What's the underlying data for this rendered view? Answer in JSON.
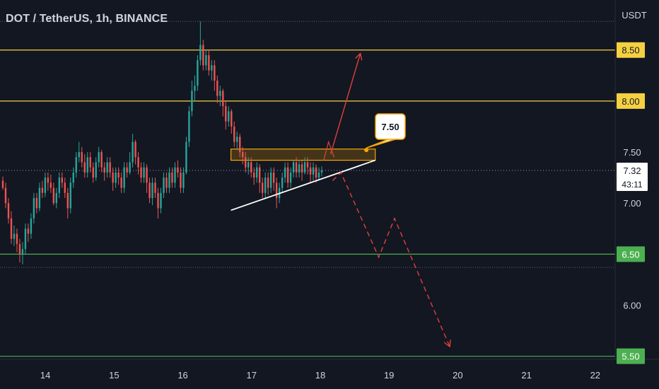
{
  "header": {
    "title": "DOT / TetherUS, 1h, BINANCE",
    "currency": "USDT"
  },
  "colors": {
    "background": "#131722",
    "bull": "#26a69a",
    "bear": "#ef5350",
    "resistance": "#f5d142",
    "support": "#4caf50",
    "zone": "#f7a600",
    "projection": "#e0403b",
    "text": "#d1d4dc"
  },
  "chart_data": {
    "type": "candlestick",
    "ylim": [
      5.47,
      8.99
    ],
    "y_ticks": [
      {
        "value": 8.0,
        "label": ""
      },
      {
        "value": 7.5,
        "label": "7.50"
      },
      {
        "value": 7.0,
        "label": "7.00"
      },
      {
        "value": 6.0,
        "label": "6.00"
      }
    ],
    "x_ticks": [
      {
        "value": 14,
        "label": "14"
      },
      {
        "value": 15,
        "label": "15"
      },
      {
        "value": 16,
        "label": "16"
      },
      {
        "value": 17,
        "label": "17"
      },
      {
        "value": 18,
        "label": "18"
      },
      {
        "value": 19,
        "label": "19"
      },
      {
        "value": 20,
        "label": "20"
      },
      {
        "value": 21,
        "label": "21"
      },
      {
        "value": 22,
        "label": "22"
      }
    ],
    "x_range": [
      13.34,
      22.29
    ],
    "levels": [
      {
        "name": "resistance-850",
        "value": 8.5,
        "label": "8.50",
        "kind": "resistance"
      },
      {
        "name": "resistance-800",
        "value": 8.0,
        "label": "8.00",
        "kind": "resistance"
      },
      {
        "name": "support-650",
        "value": 6.5,
        "label": "6.50",
        "kind": "support"
      },
      {
        "name": "support-550",
        "value": 5.5,
        "label": "5.50",
        "kind": "support"
      }
    ],
    "dotted_levels": [
      8.78,
      6.37
    ],
    "current_price": {
      "value": 7.32,
      "label": "7.32",
      "countdown": "43:11"
    },
    "zone": {
      "x_start": 16.7,
      "x_end": 18.8,
      "y_low": 7.42,
      "y_high": 7.53
    },
    "callout": {
      "label": "7.50",
      "x": 18.67,
      "y": 7.52
    },
    "trendline": {
      "points": [
        [
          16.7,
          6.93
        ],
        [
          18.8,
          7.42
        ]
      ]
    },
    "bullish_path": {
      "points": [
        [
          18.15,
          7.48
        ],
        [
          18.58,
          8.46
        ]
      ]
    },
    "bearish_path": {
      "points": [
        [
          18.18,
          7.22
        ],
        [
          18.3,
          7.3
        ],
        [
          18.85,
          6.47
        ],
        [
          19.08,
          6.85
        ],
        [
          19.88,
          5.6
        ]
      ]
    },
    "candles": [
      [
        7.22,
        7.15,
        7.26,
        7.13
      ],
      [
        7.15,
        7.0,
        7.2,
        6.95
      ],
      [
        7.0,
        6.85,
        7.05,
        6.8
      ],
      [
        6.85,
        6.65,
        6.92,
        6.6
      ],
      [
        6.65,
        6.7,
        6.78,
        6.58
      ],
      [
        6.7,
        6.6,
        6.75,
        6.52
      ],
      [
        6.6,
        6.5,
        6.65,
        6.42
      ],
      [
        6.5,
        6.55,
        6.62,
        6.4
      ],
      [
        6.55,
        6.75,
        6.8,
        6.5
      ],
      [
        6.75,
        6.7,
        6.8,
        6.62
      ],
      [
        6.7,
        6.85,
        6.9,
        6.65
      ],
      [
        6.85,
        7.05,
        7.1,
        6.8
      ],
      [
        7.05,
        6.95,
        7.1,
        6.9
      ],
      [
        6.95,
        7.15,
        7.2,
        6.92
      ],
      [
        7.15,
        7.1,
        7.22,
        7.05
      ],
      [
        7.1,
        7.25,
        7.3,
        7.06
      ],
      [
        7.25,
        7.2,
        7.3,
        7.12
      ],
      [
        7.2,
        7.15,
        7.28,
        7.1
      ],
      [
        7.15,
        7.0,
        7.2,
        6.98
      ],
      [
        7.0,
        7.1,
        7.15,
        6.95
      ],
      [
        7.1,
        7.25,
        7.3,
        7.05
      ],
      [
        7.25,
        7.2,
        7.3,
        7.15
      ],
      [
        7.2,
        7.1,
        7.25,
        7.05
      ],
      [
        7.1,
        6.95,
        7.15,
        6.85
      ],
      [
        6.95,
        7.2,
        7.25,
        6.9
      ],
      [
        7.2,
        7.3,
        7.35,
        7.15
      ],
      [
        7.3,
        7.45,
        7.5,
        7.25
      ],
      [
        7.45,
        7.5,
        7.6,
        7.4
      ],
      [
        7.5,
        7.4,
        7.55,
        7.35
      ],
      [
        7.4,
        7.3,
        7.48,
        7.25
      ],
      [
        7.3,
        7.45,
        7.5,
        7.25
      ],
      [
        7.45,
        7.35,
        7.5,
        7.3
      ],
      [
        7.35,
        7.25,
        7.4,
        7.2
      ],
      [
        7.25,
        7.4,
        7.45,
        7.22
      ],
      [
        7.4,
        7.5,
        7.55,
        7.35
      ],
      [
        7.5,
        7.35,
        7.52,
        7.3
      ],
      [
        7.35,
        7.3,
        7.4,
        7.22
      ],
      [
        7.3,
        7.4,
        7.45,
        7.25
      ],
      [
        7.4,
        7.3,
        7.45,
        7.25
      ],
      [
        7.3,
        7.2,
        7.35,
        7.12
      ],
      [
        7.2,
        7.3,
        7.35,
        7.15
      ],
      [
        7.3,
        7.25,
        7.35,
        7.18
      ],
      [
        7.25,
        7.15,
        7.3,
        7.1
      ],
      [
        7.15,
        7.35,
        7.4,
        7.1
      ],
      [
        7.35,
        7.3,
        7.4,
        7.25
      ],
      [
        7.3,
        7.4,
        7.5,
        7.28
      ],
      [
        7.4,
        7.6,
        7.68,
        7.35
      ],
      [
        7.6,
        7.45,
        7.62,
        7.38
      ],
      [
        7.45,
        7.35,
        7.5,
        7.28
      ],
      [
        7.35,
        7.25,
        7.4,
        7.2
      ],
      [
        7.25,
        7.35,
        7.4,
        7.2
      ],
      [
        7.35,
        7.2,
        7.38,
        7.1
      ],
      [
        7.2,
        7.05,
        7.25,
        7.0
      ],
      [
        7.05,
        7.2,
        7.25,
        6.98
      ],
      [
        7.2,
        7.1,
        7.25,
        7.05
      ],
      [
        7.1,
        6.95,
        7.15,
        6.85
      ],
      [
        6.95,
        7.1,
        7.15,
        6.9
      ],
      [
        7.1,
        7.25,
        7.3,
        7.05
      ],
      [
        7.25,
        7.15,
        7.3,
        7.1
      ],
      [
        7.15,
        7.3,
        7.35,
        7.1
      ],
      [
        7.3,
        7.2,
        7.35,
        7.15
      ],
      [
        7.2,
        7.35,
        7.4,
        7.15
      ],
      [
        7.35,
        7.3,
        7.42,
        7.25
      ],
      [
        7.3,
        7.15,
        7.35,
        7.1
      ],
      [
        7.15,
        7.3,
        7.35,
        7.1
      ],
      [
        7.3,
        7.6,
        7.65,
        7.28
      ],
      [
        7.6,
        7.9,
        7.95,
        7.55
      ],
      [
        7.9,
        8.1,
        8.2,
        7.85
      ],
      [
        8.1,
        8.15,
        8.25,
        8.0
      ],
      [
        8.15,
        8.4,
        8.45,
        8.1
      ],
      [
        8.4,
        8.55,
        8.78,
        8.35
      ],
      [
        8.55,
        8.35,
        8.6,
        8.3
      ],
      [
        8.35,
        8.45,
        8.5,
        8.3
      ],
      [
        8.45,
        8.3,
        8.5,
        8.25
      ],
      [
        8.3,
        8.35,
        8.4,
        8.2
      ],
      [
        8.35,
        8.2,
        8.4,
        8.1
      ],
      [
        8.2,
        8.05,
        8.25,
        7.98
      ],
      [
        8.05,
        8.1,
        8.15,
        7.95
      ],
      [
        8.1,
        7.95,
        8.12,
        7.85
      ],
      [
        7.95,
        7.8,
        8.0,
        7.72
      ],
      [
        7.8,
        7.9,
        7.95,
        7.75
      ],
      [
        7.9,
        7.75,
        7.92,
        7.68
      ],
      [
        7.75,
        7.6,
        7.8,
        7.55
      ],
      [
        7.6,
        7.65,
        7.7,
        7.52
      ],
      [
        7.65,
        7.5,
        7.68,
        7.45
      ],
      [
        7.5,
        7.45,
        7.55,
        7.38
      ],
      [
        7.45,
        7.35,
        7.5,
        7.3
      ],
      [
        7.35,
        7.4,
        7.45,
        7.28
      ],
      [
        7.4,
        7.3,
        7.45,
        7.25
      ],
      [
        7.3,
        7.25,
        7.35,
        7.18
      ],
      [
        7.25,
        7.35,
        7.4,
        7.2
      ],
      [
        7.35,
        7.2,
        7.38,
        7.1
      ],
      [
        7.2,
        7.1,
        7.25,
        7.05
      ],
      [
        7.1,
        7.25,
        7.3,
        7.05
      ],
      [
        7.25,
        7.15,
        7.3,
        7.08
      ],
      [
        7.15,
        7.3,
        7.35,
        7.1
      ],
      [
        7.3,
        7.2,
        7.35,
        7.12
      ],
      [
        7.2,
        7.05,
        7.25,
        6.95
      ],
      [
        7.05,
        7.15,
        7.2,
        7.0
      ],
      [
        7.15,
        7.25,
        7.3,
        7.1
      ],
      [
        7.25,
        7.35,
        7.4,
        7.2
      ],
      [
        7.35,
        7.2,
        7.4,
        7.15
      ],
      [
        7.2,
        7.3,
        7.35,
        7.15
      ],
      [
        7.3,
        7.4,
        7.42,
        7.25
      ],
      [
        7.4,
        7.3,
        7.45,
        7.25
      ],
      [
        7.3,
        7.38,
        7.42,
        7.25
      ],
      [
        7.38,
        7.3,
        7.42,
        7.22
      ],
      [
        7.3,
        7.4,
        7.45,
        7.28
      ],
      [
        7.4,
        7.35,
        7.45,
        7.28
      ],
      [
        7.35,
        7.28,
        7.4,
        7.2
      ],
      [
        7.28,
        7.35,
        7.4,
        7.22
      ],
      [
        7.35,
        7.25,
        7.38,
        7.2
      ],
      [
        7.25,
        7.3,
        7.35,
        7.22
      ],
      [
        7.3,
        7.32,
        7.36,
        7.26
      ]
    ]
  }
}
